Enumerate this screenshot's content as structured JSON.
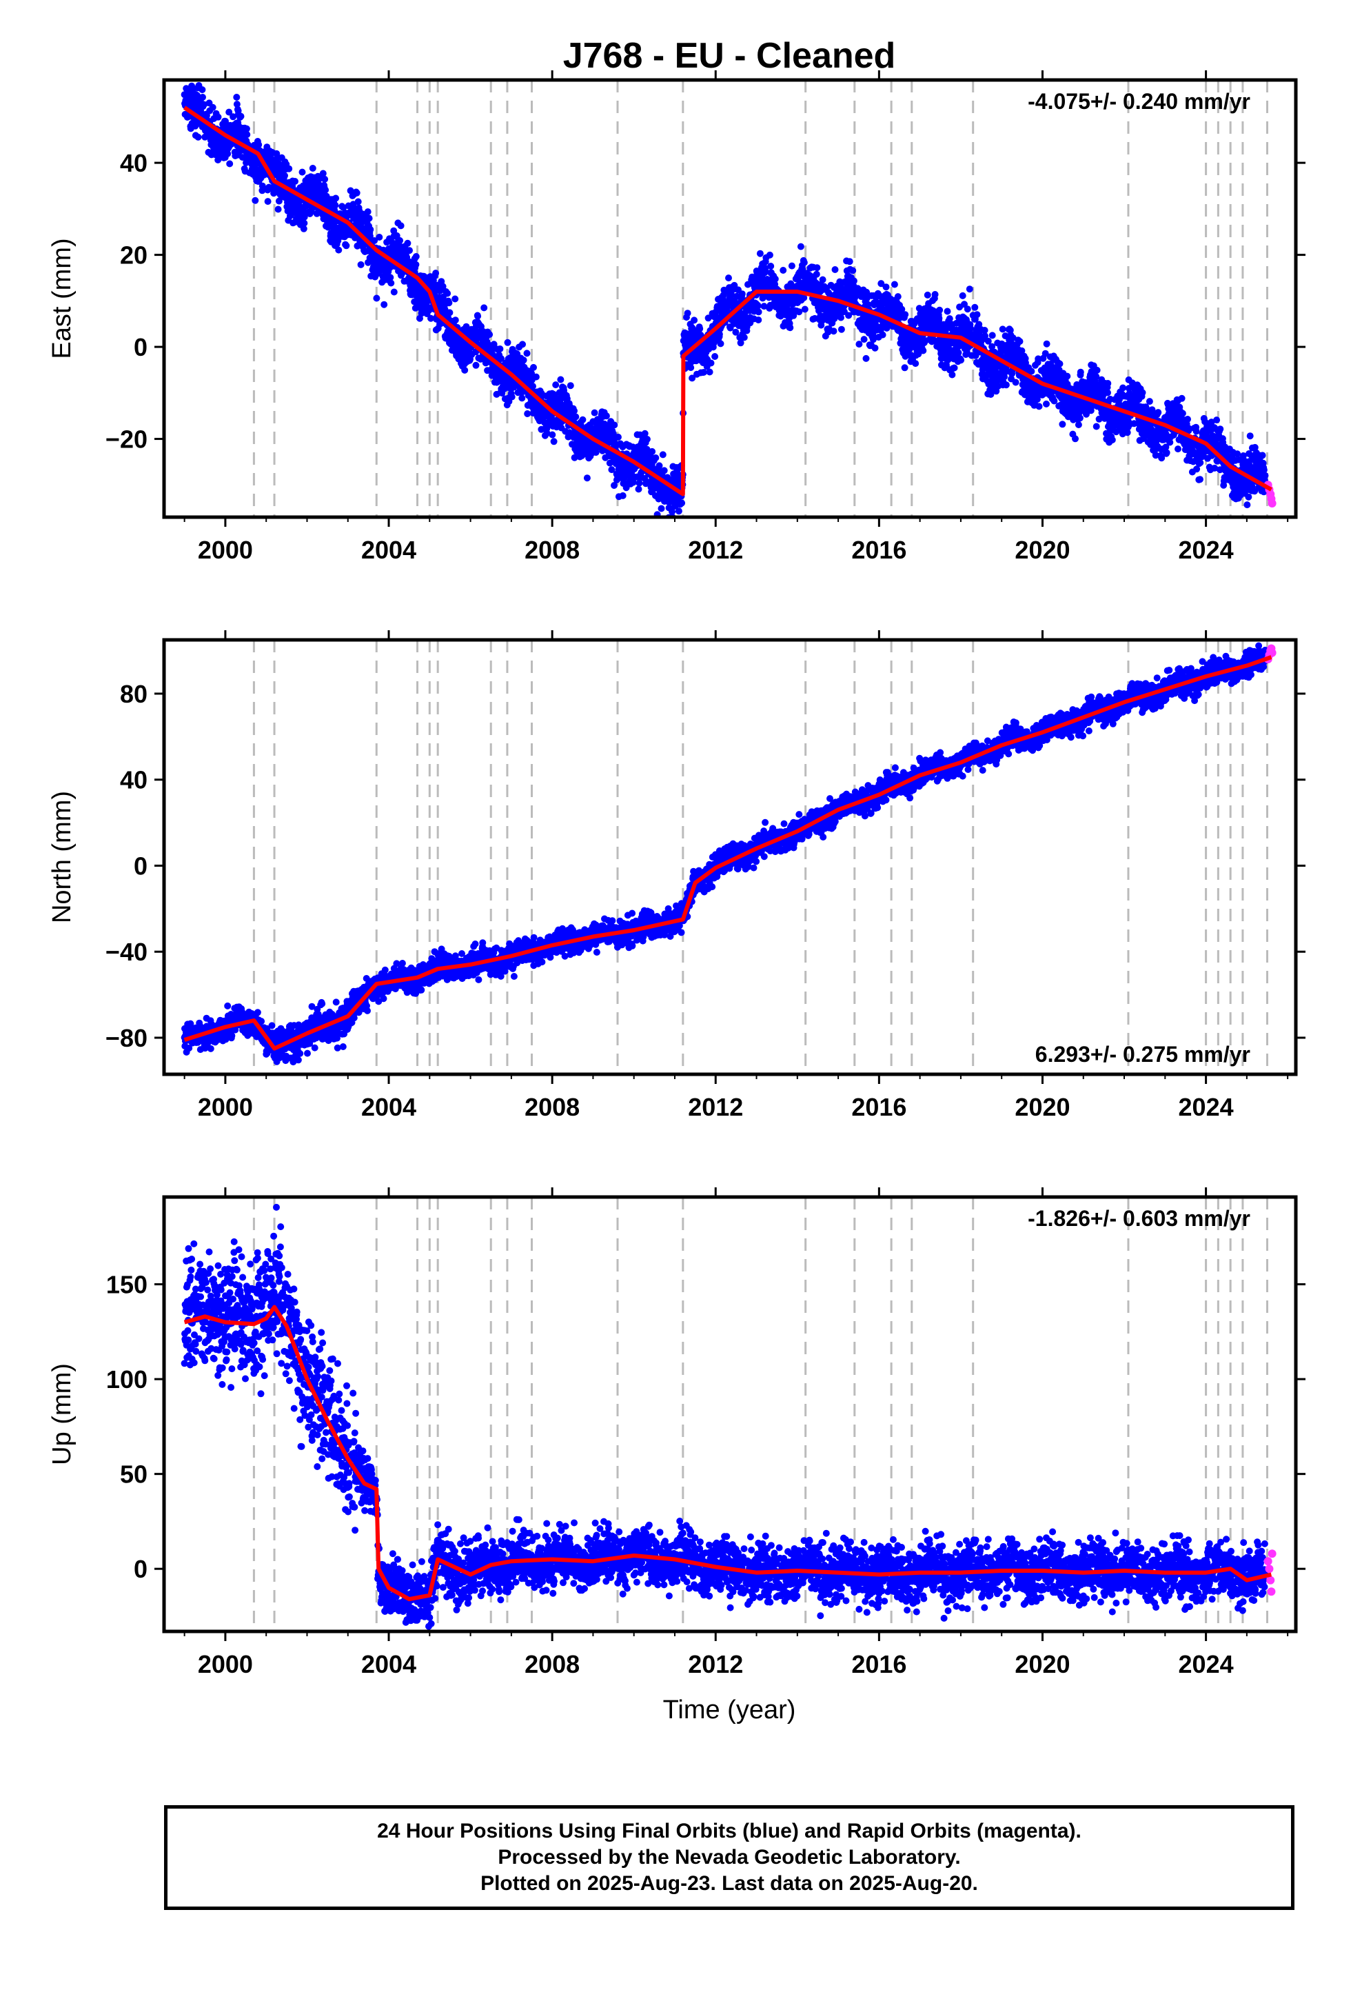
{
  "title": "J768  - EU - Cleaned",
  "colors": {
    "final": "#0000ff",
    "rapid": "#ff33ff",
    "model": "#ff0000",
    "dashed": "#bbbbbb",
    "frame": "#000000"
  },
  "caption": {
    "line1": "24 Hour Positions Using Final Orbits (blue) and Rapid Orbits (magenta).",
    "line2": "Processed by the Nevada Geodetic Laboratory.",
    "line3": "Plotted on 2025-Aug-23. Last data on 2025-Aug-20."
  },
  "chart_data": {
    "type": "scatter",
    "x_ticks": [
      "2000",
      "2004",
      "2008",
      "2012",
      "2016",
      "2020",
      "2024"
    ],
    "x_tick_values": [
      2000,
      2004,
      2008,
      2012,
      2016,
      2020,
      2024
    ],
    "xlim": [
      1998.5,
      2026.2
    ],
    "xlabel": "Time (year)",
    "event_lines": [
      2000.7,
      2001.2,
      2003.7,
      2004.7,
      2005.0,
      2005.2,
      2006.5,
      2006.9,
      2007.5,
      2009.6,
      2011.2,
      2014.2,
      2015.4,
      2016.3,
      2016.8,
      2018.3,
      2022.1,
      2024.0,
      2024.3,
      2024.6,
      2024.9,
      2025.5
    ],
    "panels": [
      {
        "name": "east",
        "ylabel": "East (mm)",
        "ylim": [
          -37,
          58
        ],
        "y_ticks": [
          "40",
          "20",
          "0",
          "−20"
        ],
        "y_tick_values": [
          40,
          20,
          0,
          -20
        ],
        "rate": "-4.075+/- 0.240 mm/yr",
        "rate_position": "top-right",
        "model": [
          [
            1999.0,
            52
          ],
          [
            2000.0,
            46
          ],
          [
            2000.8,
            42
          ],
          [
            2001.2,
            36
          ],
          [
            2002.0,
            32
          ],
          [
            2003.0,
            27
          ],
          [
            2003.7,
            21
          ],
          [
            2004.7,
            15
          ],
          [
            2005.0,
            12
          ],
          [
            2005.2,
            7
          ],
          [
            2006.0,
            1
          ],
          [
            2007.0,
            -6
          ],
          [
            2008.0,
            -14
          ],
          [
            2009.0,
            -20
          ],
          [
            2010.0,
            -25
          ],
          [
            2011.2,
            -32
          ],
          [
            2011.21,
            -2
          ],
          [
            2012.0,
            4
          ],
          [
            2013.0,
            12
          ],
          [
            2014.0,
            12
          ],
          [
            2015.0,
            10
          ],
          [
            2016.0,
            7
          ],
          [
            2017.0,
            3
          ],
          [
            2018.0,
            2
          ],
          [
            2019.0,
            -3
          ],
          [
            2020.0,
            -8
          ],
          [
            2021.0,
            -11
          ],
          [
            2022.0,
            -14
          ],
          [
            2023.0,
            -17
          ],
          [
            2024.0,
            -21
          ],
          [
            2024.6,
            -26
          ],
          [
            2025.6,
            -31
          ]
        ],
        "final_end": 2025.45,
        "scatter": 2.6,
        "season_amp": 2.5,
        "rapid": [
          [
            2025.52,
            -30
          ],
          [
            2025.55,
            -31
          ],
          [
            2025.58,
            -32
          ],
          [
            2025.6,
            -33
          ],
          [
            2025.62,
            -34
          ]
        ]
      },
      {
        "name": "north",
        "ylabel": "North (mm)",
        "ylim": [
          -97,
          105
        ],
        "y_ticks": [
          "80",
          "40",
          "0",
          "−40",
          "−80"
        ],
        "y_tick_values": [
          80,
          40,
          0,
          -40,
          -80
        ],
        "rate": "6.293+/- 0.275 mm/yr",
        "rate_position": "bottom-right",
        "model": [
          [
            1999.0,
            -81
          ],
          [
            2000.0,
            -75
          ],
          [
            2000.7,
            -72
          ],
          [
            2001.2,
            -85
          ],
          [
            2002.0,
            -78
          ],
          [
            2003.0,
            -70
          ],
          [
            2003.7,
            -55
          ],
          [
            2004.7,
            -52
          ],
          [
            2005.2,
            -48
          ],
          [
            2006.0,
            -46
          ],
          [
            2007.0,
            -42
          ],
          [
            2008.0,
            -37
          ],
          [
            2009.0,
            -33
          ],
          [
            2010.0,
            -30
          ],
          [
            2011.2,
            -25
          ],
          [
            2011.5,
            -8
          ],
          [
            2012.0,
            -1
          ],
          [
            2013.0,
            8
          ],
          [
            2014.0,
            16
          ],
          [
            2015.0,
            26
          ],
          [
            2016.0,
            33
          ],
          [
            2017.0,
            42
          ],
          [
            2018.0,
            48
          ],
          [
            2019.0,
            56
          ],
          [
            2020.0,
            62
          ],
          [
            2021.0,
            69
          ],
          [
            2022.0,
            76
          ],
          [
            2023.0,
            82
          ],
          [
            2024.0,
            88
          ],
          [
            2025.0,
            93
          ],
          [
            2025.6,
            97
          ]
        ],
        "final_end": 2025.45,
        "scatter": 2.8,
        "season_amp": 1.5,
        "rapid": [
          [
            2025.52,
            96
          ],
          [
            2025.55,
            98
          ],
          [
            2025.58,
            100
          ],
          [
            2025.6,
            101
          ],
          [
            2025.62,
            99
          ]
        ]
      },
      {
        "name": "up",
        "ylabel": "Up (mm)",
        "ylim": [
          -33,
          196
        ],
        "y_ticks": [
          "150",
          "100",
          "50",
          "0"
        ],
        "y_tick_values": [
          150,
          100,
          50,
          0
        ],
        "rate": "-1.826+/- 0.603 mm/yr",
        "rate_position": "top-right",
        "model": [
          [
            1999.0,
            130
          ],
          [
            1999.5,
            133
          ],
          [
            2000.0,
            130
          ],
          [
            2000.7,
            129
          ],
          [
            2001.0,
            132
          ],
          [
            2001.2,
            138
          ],
          [
            2001.5,
            128
          ],
          [
            2002.0,
            100
          ],
          [
            2002.5,
            78
          ],
          [
            2003.0,
            58
          ],
          [
            2003.4,
            45
          ],
          [
            2003.7,
            42
          ],
          [
            2003.75,
            0
          ],
          [
            2004.0,
            -10
          ],
          [
            2004.5,
            -16
          ],
          [
            2005.0,
            -14
          ],
          [
            2005.2,
            5
          ],
          [
            2006.0,
            -3
          ],
          [
            2006.5,
            2
          ],
          [
            2007.0,
            4
          ],
          [
            2008.0,
            5
          ],
          [
            2009.0,
            4
          ],
          [
            2010.0,
            7
          ],
          [
            2011.0,
            5
          ],
          [
            2012.0,
            1
          ],
          [
            2013.0,
            -2
          ],
          [
            2014.0,
            -1
          ],
          [
            2015.0,
            -2
          ],
          [
            2016.0,
            -3
          ],
          [
            2017.0,
            -2
          ],
          [
            2018.0,
            -2
          ],
          [
            2019.0,
            -1
          ],
          [
            2020.0,
            -1
          ],
          [
            2021.0,
            -2
          ],
          [
            2022.0,
            -1
          ],
          [
            2023.0,
            -2
          ],
          [
            2024.0,
            -2
          ],
          [
            2024.6,
            0
          ],
          [
            2025.0,
            -6
          ],
          [
            2025.6,
            -3
          ]
        ],
        "final_end": 2025.45,
        "scatter": 7,
        "season_amp": 3,
        "rapid": [
          [
            2025.52,
            4
          ],
          [
            2025.55,
            0
          ],
          [
            2025.58,
            -6
          ],
          [
            2025.6,
            -12
          ],
          [
            2025.62,
            8
          ]
        ]
      }
    ]
  }
}
